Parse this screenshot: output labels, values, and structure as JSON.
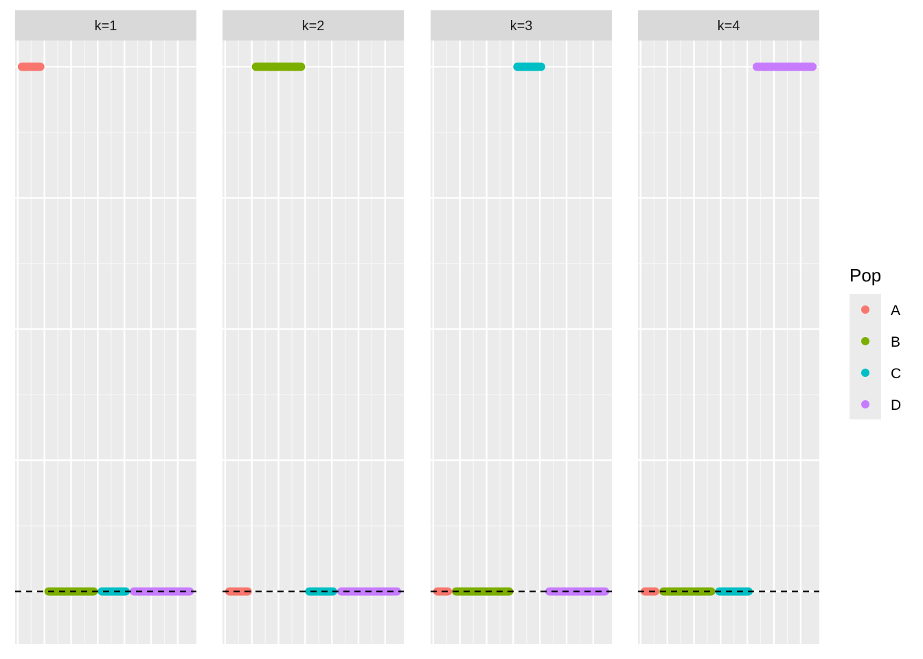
{
  "chart_data": {
    "type": "line",
    "facets": [
      {
        "label": "k=1",
        "segments": [
          {
            "pop": "A",
            "x": [
              0,
              1
            ],
            "y": 1
          },
          {
            "pop": "B",
            "x": [
              1,
              3
            ],
            "y": 0
          },
          {
            "pop": "C",
            "x": [
              3,
              4.2
            ],
            "y": 0
          },
          {
            "pop": "D",
            "x": [
              4.2,
              6.6
            ],
            "y": 0
          }
        ]
      },
      {
        "label": "k=2",
        "segments": [
          {
            "pop": "A",
            "x": [
              0,
              1
            ],
            "y": 0
          },
          {
            "pop": "B",
            "x": [
              1,
              3
            ],
            "y": 1
          },
          {
            "pop": "C",
            "x": [
              3,
              4.2
            ],
            "y": 0
          },
          {
            "pop": "D",
            "x": [
              4.2,
              6.6
            ],
            "y": 0
          }
        ]
      },
      {
        "label": "k=3",
        "segments": [
          {
            "pop": "A",
            "x": [
              0,
              0.7
            ],
            "y": 0
          },
          {
            "pop": "B",
            "x": [
              0.7,
              3
            ],
            "y": 0
          },
          {
            "pop": "C",
            "x": [
              3,
              4.2
            ],
            "y": 1
          },
          {
            "pop": "D",
            "x": [
              4.2,
              6.6
            ],
            "y": 0
          }
        ]
      },
      {
        "label": "k=4",
        "segments": [
          {
            "pop": "A",
            "x": [
              0,
              0.7
            ],
            "y": 0
          },
          {
            "pop": "B",
            "x": [
              0.7,
              2.8
            ],
            "y": 0
          },
          {
            "pop": "C",
            "x": [
              2.8,
              4.2
            ],
            "y": 0
          },
          {
            "pop": "D",
            "x": [
              4.2,
              6.6
            ],
            "y": 1
          }
        ]
      }
    ],
    "xlim": [
      -0.1,
      6.7
    ],
    "ylim": [
      -0.1,
      1.05
    ],
    "x_gridlines": [
      0,
      1,
      2,
      3,
      4,
      5,
      6
    ],
    "x_minor_gridlines": [
      0.5,
      1.5,
      2.5,
      3.5,
      4.5,
      5.5
    ],
    "y_gridlines": [
      0,
      0.25,
      0.5,
      0.75,
      1
    ],
    "y_minor_gridlines": [
      0.125,
      0.375,
      0.625,
      0.875
    ],
    "hline": {
      "y": 0,
      "style": "dashed",
      "color": "#000000"
    },
    "legend": {
      "title": "Pop",
      "position": "right",
      "entries": [
        {
          "label": "A",
          "color": "#F8766D"
        },
        {
          "label": "B",
          "color": "#7CAE00"
        },
        {
          "label": "C",
          "color": "#00BFC4"
        },
        {
          "label": "D",
          "color": "#C77CFF"
        }
      ]
    },
    "grid": true,
    "xlabel": "",
    "ylabel": ""
  }
}
